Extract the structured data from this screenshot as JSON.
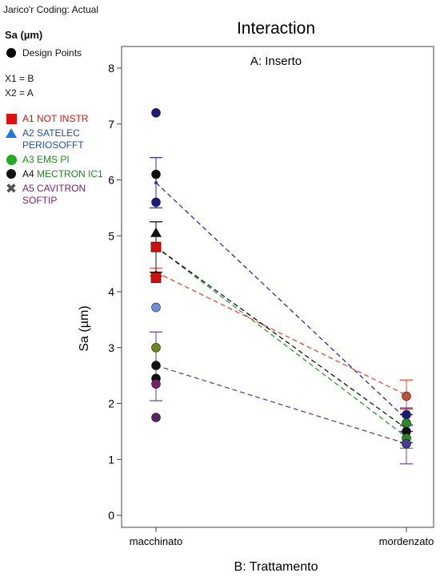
{
  "corner_text": "Jarico'r Coding: Actual",
  "legend": {
    "title": "Sa (µm)",
    "design_points": "Design Points",
    "factors": [
      "X1 = B",
      "X2 = A"
    ],
    "items": [
      {
        "label": "A1 NOT INSTR",
        "color": "#e01010",
        "symbol": "square"
      },
      {
        "label": "A2 SATELEC\nPERIOSOFFT",
        "color": "#1f4fa8",
        "symbol": "triangle"
      },
      {
        "label": "A3 EMS PI",
        "color": "#1c8a1c",
        "symbol": "circle"
      },
      {
        "label_prefix": "A4",
        "label": "MECTRON IC1",
        "color": "#111111",
        "symbol": "circle"
      },
      {
        "label": "A5 CAVITRON\nSOFTIP",
        "color": "#7a1f6e",
        "symbol": "cross"
      }
    ]
  },
  "chart_data": {
    "type": "line",
    "title": "Interaction",
    "subtitle": "A: Inserto",
    "xlabel": "B: Trattamento",
    "ylabel": "Sa (µm)",
    "categories": [
      "macchinato",
      "mordenzato"
    ],
    "ylim": [
      0,
      8
    ],
    "yticks": [
      0,
      1,
      2,
      3,
      4,
      5,
      6,
      7,
      8
    ],
    "series": [
      {
        "name": "A1 NOT INSTR",
        "color": "#e34a33",
        "values": [
          4.35,
          2.15
        ],
        "error": [
          [
            4.28,
            4.42
          ],
          [
            1.9,
            2.42
          ]
        ]
      },
      {
        "name": "A2 SATELEC PERIOSOFFT",
        "color": "#2a2ab0",
        "values": [
          5.95,
          1.72
        ],
        "error": [
          [
            5.5,
            6.4
          ],
          [
            1.5,
            1.92
          ]
        ]
      },
      {
        "name": "A3 EMS PI",
        "color": "#2a9a2a",
        "values": [
          4.8,
          1.4
        ],
        "error": [
          [
            4.35,
            5.25
          ],
          [
            1.2,
            1.6
          ]
        ]
      },
      {
        "name": "A4 MECTRON IC1",
        "color": "#111111",
        "values": [
          4.8,
          1.55
        ],
        "error": [
          [
            4.35,
            5.25
          ],
          [
            1.3,
            1.8
          ]
        ]
      },
      {
        "name": "A5 CAVITRON SOFTIP",
        "color": "#6a3d9a",
        "values": [
          2.68,
          1.28
        ],
        "error": [
          [
            2.05,
            3.28
          ],
          [
            0.92,
            1.62
          ]
        ]
      }
    ],
    "design_points": [
      {
        "x": "macchinato",
        "y": 7.2,
        "color": "#1a1a7a"
      },
      {
        "x": "macchinato",
        "y": 6.1,
        "color": "#111111"
      },
      {
        "x": "macchinato",
        "y": 5.6,
        "color": "#1a1a7a"
      },
      {
        "x": "macchinato",
        "y": 5.05,
        "color": "#111111",
        "marker": "triangle"
      },
      {
        "x": "macchinato",
        "y": 4.8,
        "color": "#d01010",
        "marker": "square"
      },
      {
        "x": "macchinato",
        "y": 4.25,
        "color": "#d01010",
        "marker": "square"
      },
      {
        "x": "macchinato",
        "y": 3.72,
        "color": "#6a8fe0"
      },
      {
        "x": "macchinato",
        "y": 3.0,
        "color": "#6a8a1c"
      },
      {
        "x": "macchinato",
        "y": 2.68,
        "color": "#111111"
      },
      {
        "x": "macchinato",
        "y": 2.45,
        "color": "#111111"
      },
      {
        "x": "macchinato",
        "y": 2.35,
        "color": "#7a1f6e"
      },
      {
        "x": "macchinato",
        "y": 1.75,
        "color": "#5a2060"
      },
      {
        "x": "mordenzato",
        "y": 2.13,
        "color": "#c0503a"
      },
      {
        "x": "mordenzato",
        "y": 1.8,
        "color": "#1a1a7a"
      },
      {
        "x": "mordenzato",
        "y": 1.65,
        "color": "#2a8a2a"
      },
      {
        "x": "mordenzato",
        "y": 1.5,
        "color": "#111111"
      },
      {
        "x": "mordenzato",
        "y": 1.38,
        "color": "#2a8a2a"
      },
      {
        "x": "mordenzato",
        "y": 1.28,
        "color": "#4a3a9a"
      }
    ]
  }
}
